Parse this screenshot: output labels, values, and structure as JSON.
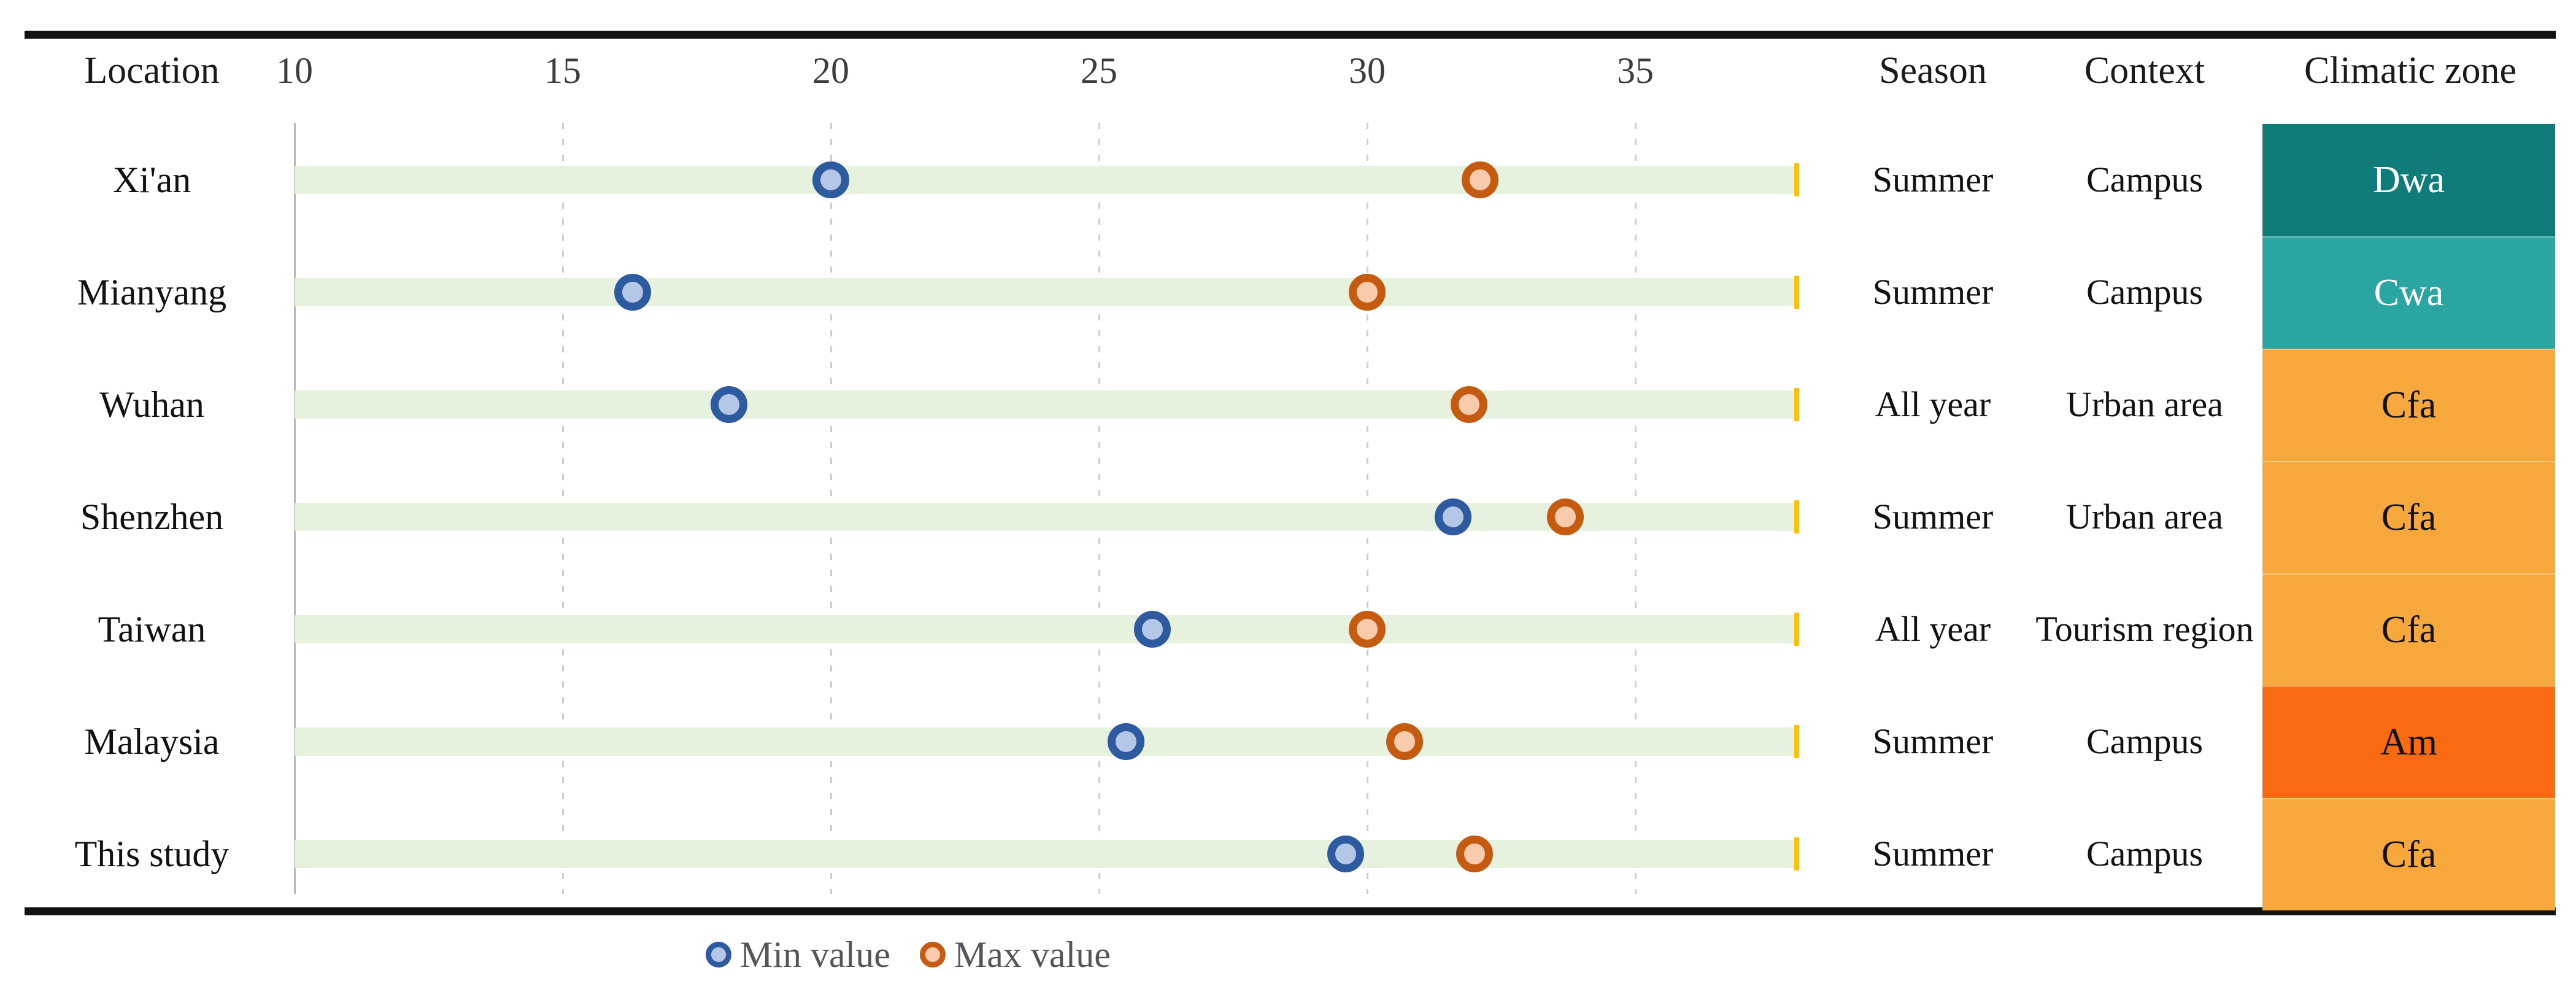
{
  "chart_data": {
    "type": "scatter",
    "subtype": "dot-range-table",
    "title": "",
    "x_axis": {
      "ticks": [
        10,
        15,
        20,
        25,
        30,
        35
      ],
      "range_min": 10,
      "range_max": 38,
      "solid_line_at_value": 10,
      "grid": "dashed-vertical"
    },
    "columns": {
      "location": "Location",
      "season": "Season",
      "context": "Context",
      "zone": "Climatic zone"
    },
    "legend": [
      {
        "label": "Min value",
        "fill": "#b4c7e7",
        "border": "#2e5b9f"
      },
      {
        "label": "Max value",
        "fill": "#f8cbad",
        "border": "#c55a11"
      }
    ],
    "rows": [
      {
        "location": "Xi'an",
        "min": 20.0,
        "max": 32.1,
        "season": "Summer",
        "context": "Campus",
        "zone": "Dwa",
        "zone_color": "#0f7c7a",
        "zone_text_color": "#ffffff"
      },
      {
        "location": "Mianyang",
        "min": 16.3,
        "max": 30.0,
        "season": "Summer",
        "context": "Campus",
        "zone": "Cwa",
        "zone_color": "#2aa5a2",
        "zone_text_color": "#ffffff"
      },
      {
        "location": "Wuhan",
        "min": 18.1,
        "max": 31.9,
        "season": "All year",
        "context": "Urban area",
        "zone": "Cfa",
        "zone_color": "#f6a83c",
        "zone_text_color": "#111111"
      },
      {
        "location": "Shenzhen",
        "min": 31.6,
        "max": 33.7,
        "season": "Summer",
        "context": "Urban area",
        "zone": "Cfa",
        "zone_color": "#f6a83c",
        "zone_text_color": "#111111"
      },
      {
        "location": "Taiwan",
        "min": 26.0,
        "max": 30.0,
        "season": "All year",
        "context": "Tourism region",
        "zone": "Cfa",
        "zone_color": "#f6a83c",
        "zone_text_color": "#111111"
      },
      {
        "location": "Malaysia",
        "min": 25.5,
        "max": 30.7,
        "season": "Summer",
        "context": "Campus",
        "zone": "Am",
        "zone_color": "#fa6a10",
        "zone_text_color": "#111111"
      },
      {
        "location": "This study",
        "min": 29.6,
        "max": 32.0,
        "season": "Summer",
        "context": "Campus",
        "zone": "Cfa",
        "zone_color": "#f6a83c",
        "zone_text_color": "#111111"
      }
    ]
  },
  "colors": {
    "band": "#e7f2de",
    "band_end_tick": "#ffc000",
    "min_fill": "#b4c7e7",
    "min_border": "#2e5b9f",
    "max_fill": "#f8cbad",
    "max_border": "#c55a11",
    "grid_dashed": "#cdcdcd",
    "grid_solid": "#b8b8b8",
    "rule": "#111111"
  }
}
